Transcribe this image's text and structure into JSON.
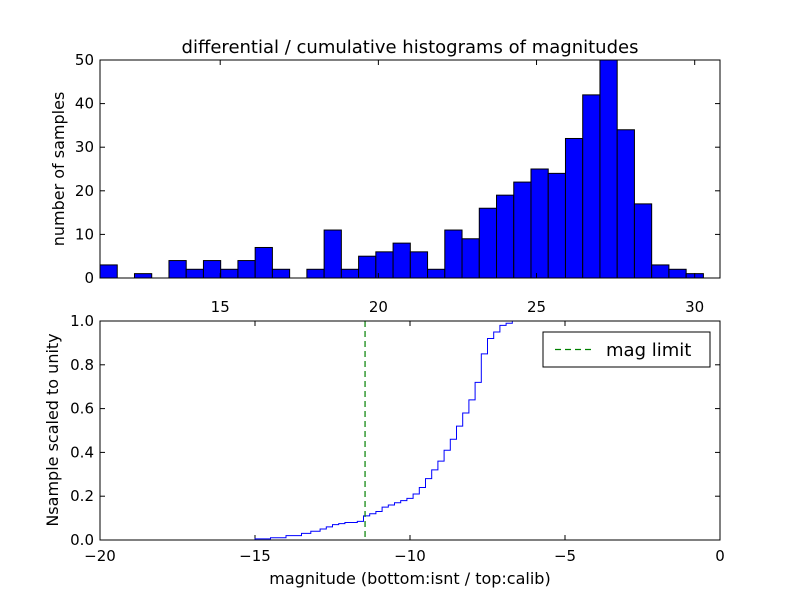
{
  "chart_data": [
    {
      "type": "bar",
      "title": "differential / cumulative histograms of magnitudes",
      "xlabel": "",
      "ylabel": "number of samples",
      "xlim": [
        11.2,
        30.8
      ],
      "ylim": [
        0,
        50
      ],
      "xticks": [
        "15",
        "20",
        "25",
        "30"
      ],
      "xtick_values": [
        15,
        20,
        25,
        30
      ],
      "yticks": [
        "0",
        "10",
        "20",
        "30",
        "40",
        "50"
      ],
      "ytick_values": [
        0,
        10,
        20,
        30,
        40,
        50
      ],
      "xaxis_position": "top",
      "bin_start": 11.2,
      "bin_width": 0.545,
      "values": [
        3,
        0,
        1,
        0,
        4,
        2,
        4,
        2,
        4,
        7,
        2,
        0,
        2,
        11,
        2,
        5,
        6,
        8,
        6,
        2,
        11,
        9,
        16,
        19,
        22,
        25,
        24,
        32,
        42,
        50,
        34,
        17,
        3,
        2,
        1
      ],
      "bar_color": "#0000ff"
    },
    {
      "type": "line",
      "title": "",
      "xlabel": "magnitude (bottom:isnt / top:calib)",
      "ylabel": "Nsample scaled to unity",
      "xlim": [
        -20,
        0
      ],
      "ylim": [
        0,
        1
      ],
      "xticks": [
        "−20",
        "−15",
        "−10",
        "−5",
        "0"
      ],
      "xtick_values": [
        -20,
        -15,
        -10,
        -5,
        0
      ],
      "yticks": [
        "0.0",
        "0.2",
        "0.4",
        "0.6",
        "0.8",
        "1.0"
      ],
      "ytick_values": [
        0,
        0.2,
        0.4,
        0.6,
        0.8,
        1.0
      ],
      "legend_placement": "top-right",
      "series": [
        {
          "name": "",
          "style": "step",
          "color": "#0000ff",
          "x": [
            -20,
            -15,
            -14.5,
            -14,
            -13.5,
            -13.2,
            -12.9,
            -12.7,
            -12.5,
            -12.3,
            -12.1,
            -11.9,
            -11.7,
            -11.5,
            -11.3,
            -11.1,
            -10.9,
            -10.7,
            -10.5,
            -10.3,
            -10.1,
            -9.9,
            -9.7,
            -9.5,
            -9.3,
            -9.1,
            -8.9,
            -8.7,
            -8.5,
            -8.3,
            -8.1,
            -7.9,
            -7.7,
            -7.5,
            -7.3,
            -7.1,
            -6.9,
            -6.7,
            -6.5,
            -6.2,
            0
          ],
          "y": [
            0.0,
            0.005,
            0.01,
            0.02,
            0.03,
            0.04,
            0.05,
            0.06,
            0.07,
            0.075,
            0.08,
            0.08,
            0.085,
            0.11,
            0.12,
            0.13,
            0.15,
            0.16,
            0.17,
            0.18,
            0.19,
            0.21,
            0.24,
            0.28,
            0.32,
            0.36,
            0.41,
            0.46,
            0.52,
            0.58,
            0.64,
            0.72,
            0.85,
            0.92,
            0.95,
            0.98,
            0.99,
            1.0,
            1.0,
            1.0,
            1.0
          ]
        },
        {
          "name": "mag limit",
          "style": "vline-dashed",
          "color": "#008000",
          "x_value": -11.45
        }
      ]
    }
  ]
}
